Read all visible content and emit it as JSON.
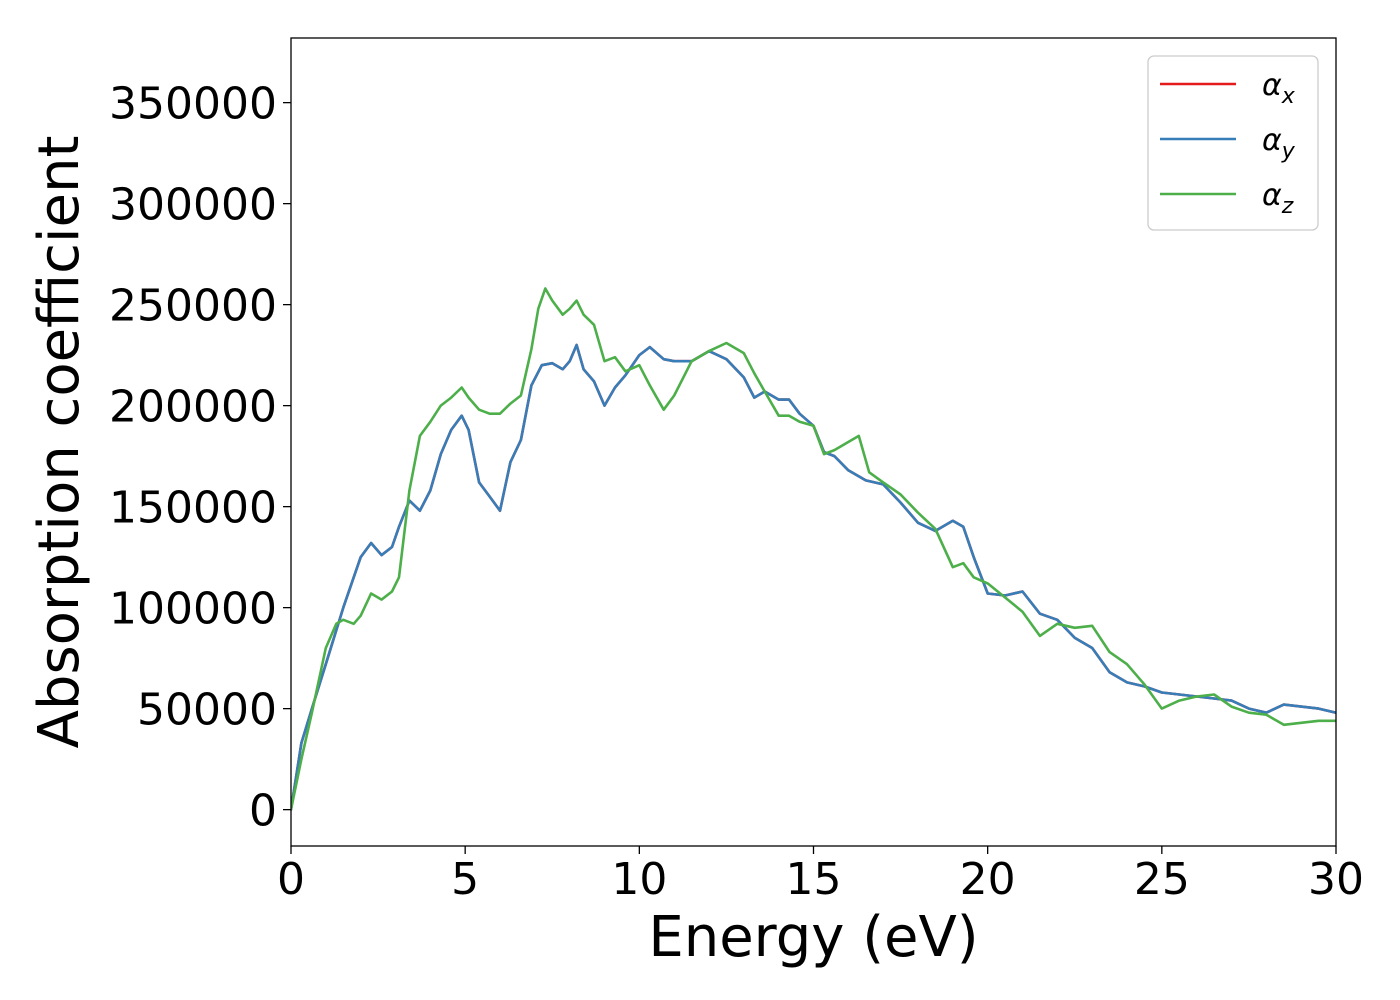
{
  "chart_data": {
    "type": "line",
    "title": "",
    "xlabel": "Energy (eV)",
    "ylabel": "Absorption coefficient",
    "xlim": [
      0,
      30
    ],
    "ylim": [
      -18000,
      382000
    ],
    "xticks": [
      0,
      5,
      10,
      15,
      20,
      25,
      30
    ],
    "xtick_labels": [
      "0",
      "5",
      "10",
      "15",
      "20",
      "25",
      "30"
    ],
    "yticks": [
      0,
      50000,
      100000,
      150000,
      200000,
      250000,
      300000,
      350000
    ],
    "ytick_labels": [
      "0",
      "50000",
      "100000",
      "150000",
      "200000",
      "250000",
      "300000",
      "350000"
    ],
    "grid": false,
    "legend_position": "top-right",
    "series": [
      {
        "name": "α_x",
        "legend_symbol": "α",
        "legend_sub": "x",
        "color": "#e41a1c",
        "x": [
          0,
          0.3,
          0.6,
          1.0,
          1.5,
          2.0,
          2.3,
          2.6,
          2.9,
          3.1,
          3.4,
          3.7,
          4.0,
          4.3,
          4.6,
          4.9,
          5.1,
          5.4,
          5.7,
          6.0,
          6.3,
          6.6,
          6.9,
          7.2,
          7.5,
          7.8,
          8.0,
          8.2,
          8.4,
          8.7,
          9.0,
          9.3,
          9.6,
          10.0,
          10.3,
          10.7,
          11.0,
          11.5,
          12.0,
          12.5,
          13.0,
          13.3,
          13.6,
          14.0,
          14.3,
          14.6,
          15.0,
          15.3,
          15.6,
          16.0,
          16.5,
          17.0,
          17.5,
          18.0,
          18.5,
          19.0,
          19.3,
          19.6,
          20.0,
          20.5,
          21.0,
          21.5,
          22.0,
          22.5,
          23.0,
          23.5,
          24.0,
          24.5,
          25.0,
          25.5,
          26.0,
          26.5,
          27.0,
          27.5,
          28.0,
          28.5,
          29.0,
          29.5,
          30.0
        ],
        "y": [
          0,
          33000,
          50000,
          72000,
          100000,
          125000,
          132000,
          126000,
          130000,
          140000,
          153000,
          148000,
          158000,
          176000,
          188000,
          195000,
          188000,
          162000,
          155000,
          148000,
          172000,
          183000,
          210000,
          220000,
          221000,
          218000,
          222000,
          230000,
          218000,
          212000,
          200000,
          209000,
          215000,
          225000,
          229000,
          223000,
          222000,
          222000,
          227000,
          223000,
          214000,
          204000,
          207000,
          203000,
          203000,
          196000,
          190000,
          177000,
          175000,
          168000,
          163000,
          161000,
          152000,
          142000,
          138000,
          143000,
          140000,
          125000,
          107000,
          106000,
          108000,
          97000,
          94000,
          85000,
          80000,
          68000,
          63000,
          61000,
          58000,
          57000,
          56000,
          55000,
          54000,
          50000,
          48000,
          52000,
          51000,
          50000,
          48000
        ]
      },
      {
        "name": "α_y",
        "legend_symbol": "α",
        "legend_sub": "y",
        "color": "#377eb8",
        "x": [
          0,
          0.3,
          0.6,
          1.0,
          1.5,
          2.0,
          2.3,
          2.6,
          2.9,
          3.1,
          3.4,
          3.7,
          4.0,
          4.3,
          4.6,
          4.9,
          5.1,
          5.4,
          5.7,
          6.0,
          6.3,
          6.6,
          6.9,
          7.2,
          7.5,
          7.8,
          8.0,
          8.2,
          8.4,
          8.7,
          9.0,
          9.3,
          9.6,
          10.0,
          10.3,
          10.7,
          11.0,
          11.5,
          12.0,
          12.5,
          13.0,
          13.3,
          13.6,
          14.0,
          14.3,
          14.6,
          15.0,
          15.3,
          15.6,
          16.0,
          16.5,
          17.0,
          17.5,
          18.0,
          18.5,
          19.0,
          19.3,
          19.6,
          20.0,
          20.5,
          21.0,
          21.5,
          22.0,
          22.5,
          23.0,
          23.5,
          24.0,
          24.5,
          25.0,
          25.5,
          26.0,
          26.5,
          27.0,
          27.5,
          28.0,
          28.5,
          29.0,
          29.5,
          30.0
        ],
        "y": [
          0,
          33000,
          50000,
          72000,
          100000,
          125000,
          132000,
          126000,
          130000,
          140000,
          153000,
          148000,
          158000,
          176000,
          188000,
          195000,
          188000,
          162000,
          155000,
          148000,
          172000,
          183000,
          210000,
          220000,
          221000,
          218000,
          222000,
          230000,
          218000,
          212000,
          200000,
          209000,
          215000,
          225000,
          229000,
          223000,
          222000,
          222000,
          227000,
          223000,
          214000,
          204000,
          207000,
          203000,
          203000,
          196000,
          190000,
          177000,
          175000,
          168000,
          163000,
          161000,
          152000,
          142000,
          138000,
          143000,
          140000,
          125000,
          107000,
          106000,
          108000,
          97000,
          94000,
          85000,
          80000,
          68000,
          63000,
          61000,
          58000,
          57000,
          56000,
          55000,
          54000,
          50000,
          48000,
          52000,
          51000,
          50000,
          48000
        ]
      },
      {
        "name": "α_z",
        "legend_symbol": "α",
        "legend_sub": "z",
        "color": "#4daf4a",
        "x": [
          0,
          0.3,
          0.6,
          1.0,
          1.3,
          1.5,
          1.8,
          2.0,
          2.3,
          2.6,
          2.9,
          3.1,
          3.4,
          3.7,
          4.0,
          4.3,
          4.6,
          4.9,
          5.1,
          5.4,
          5.7,
          6.0,
          6.3,
          6.6,
          6.9,
          7.1,
          7.3,
          7.5,
          7.8,
          8.0,
          8.2,
          8.4,
          8.7,
          9.0,
          9.3,
          9.6,
          10.0,
          10.3,
          10.7,
          11.0,
          11.5,
          12.0,
          12.5,
          13.0,
          13.3,
          13.6,
          14.0,
          14.3,
          14.6,
          15.0,
          15.3,
          15.6,
          16.0,
          16.3,
          16.6,
          17.0,
          17.5,
          18.0,
          18.5,
          19.0,
          19.3,
          19.6,
          20.0,
          20.5,
          21.0,
          21.5,
          22.0,
          22.5,
          23.0,
          23.5,
          24.0,
          24.5,
          25.0,
          25.5,
          26.0,
          26.5,
          27.0,
          27.5,
          28.0,
          28.5,
          29.0,
          29.5,
          30.0
        ],
        "y": [
          0,
          25000,
          48000,
          80000,
          92000,
          94000,
          92000,
          96000,
          107000,
          104000,
          108000,
          115000,
          158000,
          185000,
          192000,
          200000,
          204000,
          209000,
          204000,
          198000,
          196000,
          196000,
          201000,
          205000,
          228000,
          248000,
          258000,
          252000,
          245000,
          248000,
          252000,
          245000,
          240000,
          222000,
          224000,
          217000,
          220000,
          210000,
          198000,
          205000,
          222000,
          227000,
          231000,
          226000,
          216000,
          207000,
          195000,
          195000,
          192000,
          190000,
          176000,
          178000,
          182000,
          185000,
          167000,
          162000,
          156000,
          147000,
          139000,
          120000,
          122000,
          115000,
          112000,
          105000,
          98000,
          86000,
          92000,
          90000,
          91000,
          78000,
          72000,
          62000,
          50000,
          54000,
          56000,
          57000,
          51000,
          48000,
          47000,
          42000,
          43000,
          44000,
          44000
        ]
      }
    ]
  }
}
